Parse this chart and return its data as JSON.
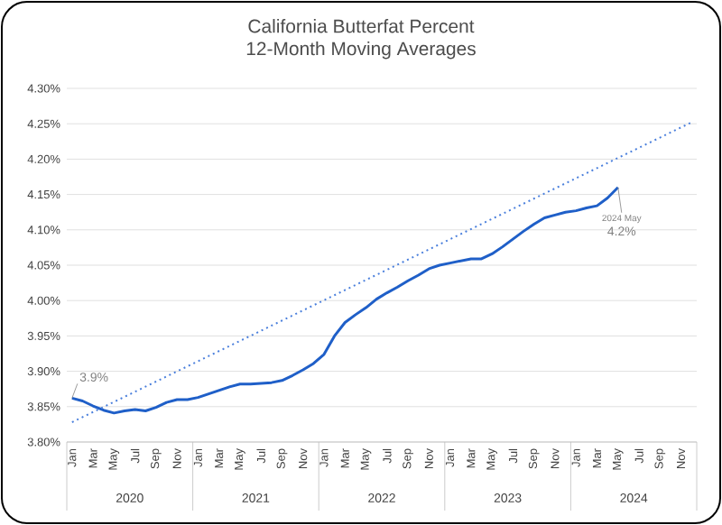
{
  "chart_data": {
    "type": "line",
    "title": "California Butterfat Percent",
    "subtitle": "12-Month Moving Averages",
    "categories": [
      "Jan",
      null,
      "Mar",
      null,
      "May",
      null,
      "Jul",
      null,
      "Sep",
      null,
      "Nov",
      null,
      "Jan",
      null,
      "Mar",
      null,
      "May",
      null,
      "Jul",
      null,
      "Sep",
      null,
      "Nov",
      null,
      "Jan",
      null,
      "Mar",
      null,
      "May",
      null,
      "Jul",
      null,
      "Sep",
      null,
      "Nov",
      null,
      "Jan",
      null,
      "Mar",
      null,
      "May",
      null,
      "Jul",
      null,
      "Sep",
      null,
      "Nov",
      null,
      "Jan",
      null,
      "Mar",
      null,
      "May",
      null,
      "Jul",
      null,
      "Sep",
      null,
      "Nov",
      null
    ],
    "series": [
      {
        "color": "#1f5fc8",
        "line_style": "solid",
        "values": [
          3.862,
          3.858,
          3.851,
          3.845,
          3.841,
          3.844,
          3.846,
          3.844,
          3.849,
          3.856,
          3.86,
          3.86,
          3.863,
          3.868,
          3.873,
          3.878,
          3.882,
          3.882,
          3.883,
          3.884,
          3.887,
          3.894,
          3.902,
          3.911,
          3.924,
          3.95,
          3.969,
          3.98,
          3.99,
          4.002,
          4.011,
          4.019,
          4.028,
          4.036,
          4.045,
          4.05,
          4.053,
          4.056,
          4.059,
          4.059,
          4.066,
          4.076,
          4.087,
          4.098,
          4.108,
          4.117,
          4.121,
          4.125,
          4.127,
          4.131,
          4.134,
          4.145,
          4.16,
          null,
          null,
          null,
          null,
          null,
          null,
          null
        ],
        "value_labels": [
          "3.9%",
          null,
          null,
          null,
          null,
          null,
          null,
          null,
          null,
          null,
          null,
          null,
          null,
          null,
          null,
          null,
          null,
          null,
          null,
          null,
          null,
          null,
          null,
          null,
          null,
          null,
          null,
          null,
          null,
          null,
          null,
          null,
          null,
          null,
          null,
          null,
          null,
          null,
          null,
          null,
          null,
          null,
          null,
          null,
          null,
          null,
          null,
          null,
          null,
          null,
          null,
          null,
          "4.2%",
          null,
          null,
          null,
          null,
          null,
          null,
          null
        ]
      },
      {
        "color": "#4a7fdc",
        "line_style": "dotted",
        "values": [
          3.828,
          null,
          null,
          null,
          null,
          null,
          null,
          null,
          null,
          null,
          null,
          null,
          null,
          null,
          null,
          null,
          null,
          null,
          null,
          null,
          null,
          null,
          null,
          null,
          null,
          null,
          null,
          null,
          null,
          null,
          null,
          null,
          null,
          null,
          null,
          null,
          null,
          null,
          null,
          null,
          null,
          null,
          null,
          null,
          null,
          null,
          null,
          null,
          null,
          null,
          null,
          null,
          null,
          null,
          null,
          null,
          null,
          null,
          null,
          4.252
        ]
      }
    ],
    "ylim": [
      3.8,
      4.3
    ],
    "yticks": [
      {
        "value": 3.8,
        "label": "3.80%"
      },
      {
        "value": 3.85,
        "label": "3.85%"
      },
      {
        "value": 3.9,
        "label": "3.90%"
      },
      {
        "value": 3.95,
        "label": "3.95%"
      },
      {
        "value": 4.0,
        "label": "4.00%"
      },
      {
        "value": 4.05,
        "label": "4.05%"
      },
      {
        "value": 4.1,
        "label": "4.10%"
      },
      {
        "value": 4.15,
        "label": "4.15%"
      },
      {
        "value": 4.2,
        "label": "4.20%"
      },
      {
        "value": 4.25,
        "label": "4.25%"
      },
      {
        "value": 4.3,
        "label": "4.30%"
      }
    ],
    "grid": "y",
    "annotations": [
      "2020",
      "2021",
      "2022",
      "2023",
      "2024",
      {
        "text": "2024 May",
        "y": 4.16
      }
    ]
  }
}
